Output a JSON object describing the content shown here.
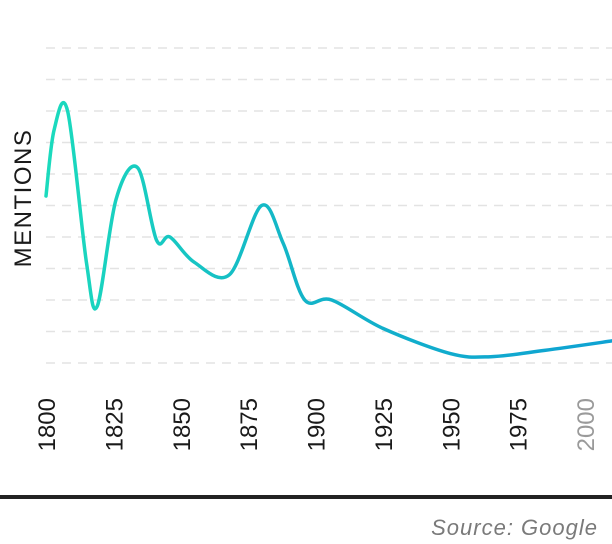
{
  "chart_data": {
    "type": "line",
    "title": "",
    "xlabel": "",
    "ylabel": "MENTIONS",
    "x_ticks": [
      "1800",
      "1825",
      "1850",
      "1875",
      "1900",
      "1925",
      "1950",
      "1975",
      "2000"
    ],
    "muted_ticks": [
      "2000"
    ],
    "xlim": [
      1800,
      2010
    ],
    "ylim": [
      0,
      10
    ],
    "grid": true,
    "gridlines": [
      1,
      2,
      3,
      4,
      5,
      6,
      7,
      8,
      9,
      10
    ],
    "series": [
      {
        "x": [
          1800,
          1803,
          1808,
          1815,
          1819,
          1826,
          1834,
          1841,
          1846,
          1855,
          1868,
          1880,
          1888,
          1896,
          1906,
          1925,
          1950,
          1965,
          1985,
          2010
        ],
        "y": [
          5.3,
          7.4,
          8.0,
          3.2,
          1.8,
          5.2,
          6.2,
          3.9,
          4.0,
          3.2,
          2.8,
          5.0,
          3.8,
          2.0,
          2.0,
          1.1,
          0.3,
          0.2,
          0.4,
          0.7
        ],
        "gradient": [
          "#1bdbbd",
          "#13b4c8",
          "#0ea2d3"
        ]
      }
    ],
    "source": "Source: Google"
  }
}
